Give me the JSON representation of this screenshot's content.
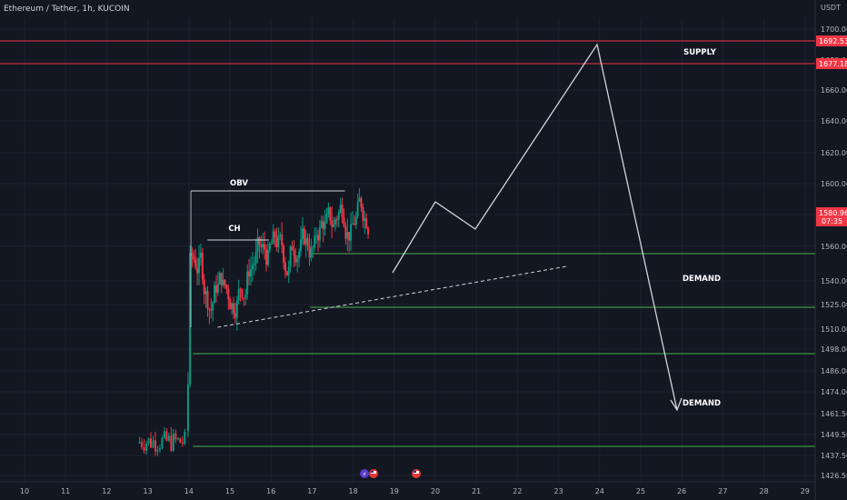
{
  "chart_data": {
    "type": "candlestick",
    "title": "Ethereum / Tether, 1h, KUCOIN",
    "currency": "USDT",
    "x_ticks": [
      "10",
      "11",
      "12",
      "13",
      "14",
      "15",
      "16",
      "17",
      "18",
      "19",
      "20",
      "21",
      "22",
      "23",
      "24",
      "25",
      "26",
      "27",
      "28",
      "29"
    ],
    "y_ticks": [
      "1700.00",
      "1680.00",
      "1660.00",
      "1640.00",
      "1620.00",
      "1600.00",
      "1580.00",
      "1560.00",
      "1540.00",
      "1525.00",
      "1510.00",
      "1498.00",
      "1486.00",
      "1474.00",
      "1461.50",
      "1449.50",
      "1437.50",
      "1426.50"
    ],
    "ylim": [
      1420,
      1712
    ],
    "horizontal_levels": [
      {
        "value": 1692.53,
        "color": "#f23645",
        "label": "1692.53"
      },
      {
        "value": 1677.18,
        "color": "#f23645",
        "label": "1677.18"
      },
      {
        "value": 1558,
        "color": "#4caf50"
      },
      {
        "value": 1525,
        "color": "#4caf50"
      },
      {
        "value": 1494,
        "color": "#4caf50"
      },
      {
        "value": 1446,
        "color": "#4caf50"
      }
    ],
    "current_price": {
      "value": "1580.96",
      "countdown": "07:35",
      "color": "#f23645"
    },
    "annotations": [
      "SUPPLY",
      "DEMAND",
      "DEMAND",
      "OBV",
      "CH"
    ],
    "projection_path": [
      {
        "x": 19.0,
        "y": 1545
      },
      {
        "x": 20.0,
        "y": 1590
      },
      {
        "x": 21.0,
        "y": 1575
      },
      {
        "x": 24.0,
        "y": 1690
      },
      {
        "x": 26.0,
        "y": 1462
      }
    ],
    "trendline": [
      {
        "x": 14.7,
        "y": 1511
      },
      {
        "x": 23.2,
        "y": 1550
      }
    ],
    "obv_level": 1596,
    "ch_level": 1568,
    "candles_summary": {
      "pre_rally_low": 1425,
      "spike_day": 14.0,
      "range_after_spike": [
        1508,
        1608
      ]
    }
  },
  "annotations": {
    "supply": "SUPPLY",
    "demand_1": "DEMAND",
    "demand_2": "DEMAND",
    "obv": "OBV",
    "ch": "CH"
  },
  "event_icons": {
    "lightning": "⚡"
  },
  "colors": {
    "up": "#089981",
    "down": "#f23645",
    "demand_line": "#4caf50",
    "supply_line": "#f23645",
    "drawing": "#d1d4dc"
  }
}
